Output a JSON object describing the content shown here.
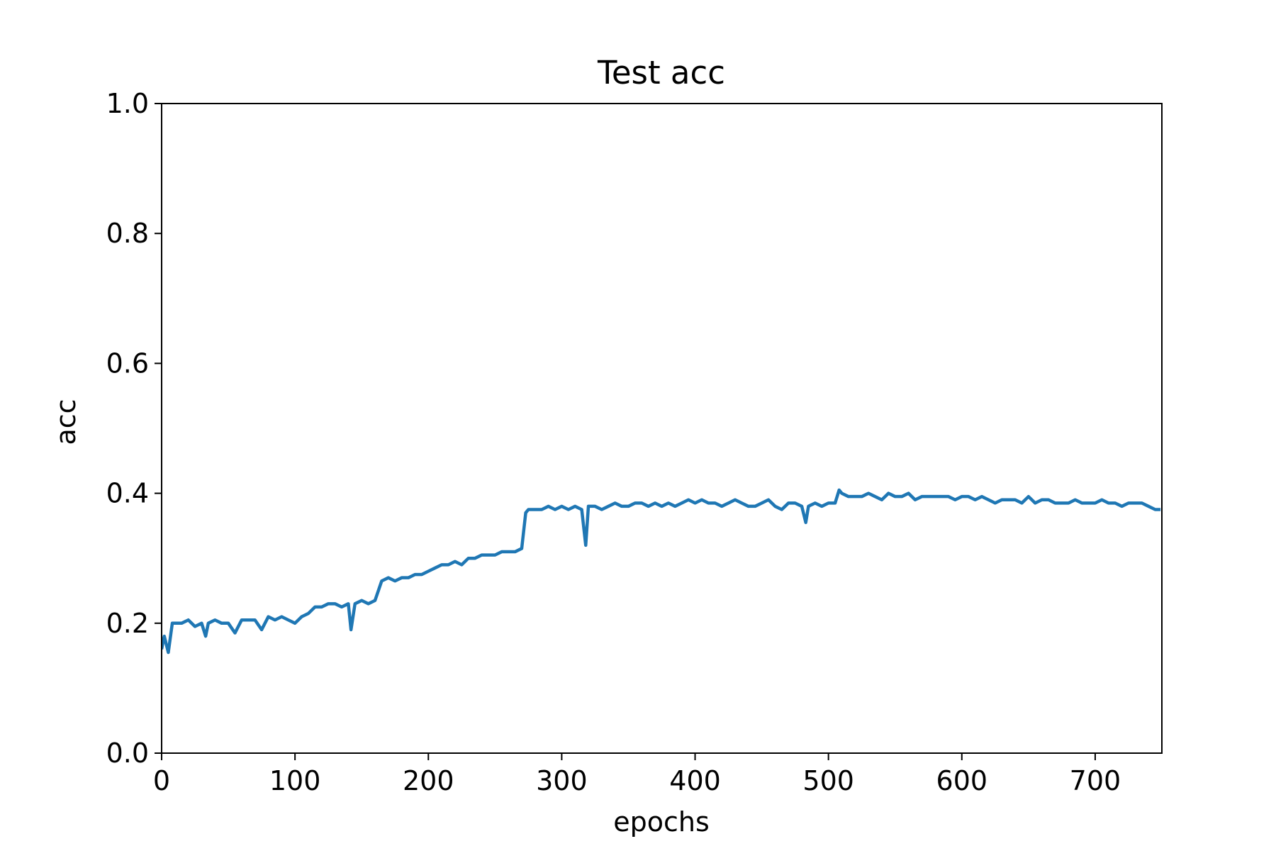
{
  "chart_data": {
    "type": "line",
    "title": "Test acc",
    "xlabel": "epochs",
    "ylabel": "acc",
    "x": [
      0,
      2,
      5,
      8,
      10,
      15,
      20,
      25,
      30,
      33,
      35,
      40,
      45,
      50,
      55,
      60,
      65,
      70,
      75,
      80,
      85,
      90,
      95,
      100,
      105,
      110,
      115,
      120,
      125,
      130,
      135,
      140,
      142,
      145,
      150,
      155,
      160,
      165,
      170,
      175,
      180,
      185,
      190,
      195,
      200,
      205,
      210,
      215,
      220,
      225,
      230,
      235,
      240,
      245,
      250,
      255,
      260,
      265,
      270,
      273,
      275,
      280,
      285,
      290,
      295,
      300,
      305,
      310,
      315,
      318,
      320,
      325,
      330,
      335,
      340,
      345,
      350,
      355,
      360,
      365,
      370,
      375,
      380,
      385,
      390,
      395,
      400,
      405,
      410,
      415,
      420,
      425,
      430,
      435,
      440,
      445,
      450,
      455,
      460,
      465,
      470,
      475,
      480,
      483,
      485,
      490,
      495,
      500,
      505,
      508,
      510,
      515,
      520,
      525,
      530,
      535,
      540,
      545,
      550,
      555,
      560,
      565,
      570,
      575,
      580,
      585,
      590,
      595,
      600,
      605,
      610,
      615,
      620,
      625,
      630,
      635,
      640,
      645,
      650,
      655,
      660,
      665,
      670,
      675,
      680,
      685,
      690,
      695,
      700,
      705,
      710,
      715,
      720,
      725,
      730,
      735,
      740,
      745,
      749
    ],
    "series": [
      {
        "name": "acc",
        "color": "#1f77b4",
        "values": [
          0.16,
          0.18,
          0.155,
          0.2,
          0.2,
          0.2,
          0.205,
          0.195,
          0.2,
          0.18,
          0.2,
          0.205,
          0.2,
          0.2,
          0.185,
          0.205,
          0.205,
          0.205,
          0.19,
          0.21,
          0.205,
          0.21,
          0.205,
          0.2,
          0.21,
          0.215,
          0.225,
          0.225,
          0.23,
          0.23,
          0.225,
          0.23,
          0.19,
          0.23,
          0.235,
          0.23,
          0.235,
          0.265,
          0.27,
          0.265,
          0.27,
          0.27,
          0.275,
          0.275,
          0.28,
          0.285,
          0.29,
          0.29,
          0.295,
          0.29,
          0.3,
          0.3,
          0.305,
          0.305,
          0.305,
          0.31,
          0.31,
          0.31,
          0.315,
          0.37,
          0.375,
          0.375,
          0.375,
          0.38,
          0.375,
          0.38,
          0.375,
          0.38,
          0.375,
          0.32,
          0.38,
          0.38,
          0.375,
          0.38,
          0.385,
          0.38,
          0.38,
          0.385,
          0.385,
          0.38,
          0.385,
          0.38,
          0.385,
          0.38,
          0.385,
          0.39,
          0.385,
          0.39,
          0.385,
          0.385,
          0.38,
          0.385,
          0.39,
          0.385,
          0.38,
          0.38,
          0.385,
          0.39,
          0.38,
          0.375,
          0.385,
          0.385,
          0.38,
          0.355,
          0.38,
          0.385,
          0.38,
          0.385,
          0.385,
          0.405,
          0.4,
          0.395,
          0.395,
          0.395,
          0.4,
          0.395,
          0.39,
          0.4,
          0.395,
          0.395,
          0.4,
          0.39,
          0.395,
          0.395,
          0.395,
          0.395,
          0.395,
          0.39,
          0.395,
          0.395,
          0.39,
          0.395,
          0.39,
          0.385,
          0.39,
          0.39,
          0.39,
          0.385,
          0.395,
          0.385,
          0.39,
          0.39,
          0.385,
          0.385,
          0.385,
          0.39,
          0.385,
          0.385,
          0.385,
          0.39,
          0.385,
          0.385,
          0.38,
          0.385,
          0.385,
          0.385,
          0.38,
          0.375,
          0.375
        ]
      }
    ],
    "xlim": [
      0,
      750
    ],
    "xticks": [
      0,
      100,
      200,
      300,
      400,
      500,
      600,
      700
    ],
    "ylim": [
      0,
      1
    ],
    "yticks": [
      {
        "value": 0,
        "label": "0.0"
      },
      0.2,
      0.4,
      0.6,
      0.8,
      {
        "value": 1,
        "label": "1.0"
      }
    ]
  }
}
